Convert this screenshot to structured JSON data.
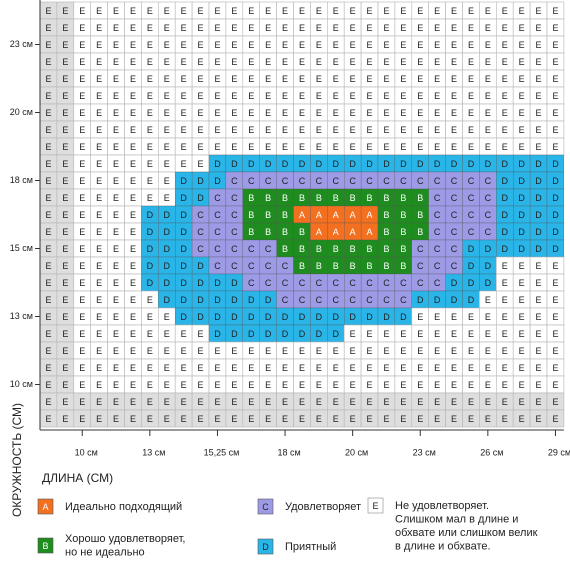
{
  "grid": {
    "rows": [
      [
        "E",
        "E",
        "E",
        "E",
        "E",
        "E",
        "E",
        "E",
        "E",
        "E",
        "E",
        "E",
        "E",
        "E",
        "E",
        "E",
        "E",
        "E",
        "E",
        "E",
        "E",
        "E",
        "E",
        "E",
        "E",
        "E",
        "E",
        "E",
        "E",
        "E",
        "E"
      ],
      [
        "E",
        "E",
        "E",
        "E",
        "E",
        "E",
        "E",
        "E",
        "E",
        "E",
        "E",
        "E",
        "E",
        "E",
        "E",
        "E",
        "E",
        "E",
        "E",
        "E",
        "E",
        "E",
        "E",
        "E",
        "E",
        "E",
        "E",
        "E",
        "E",
        "E",
        "E"
      ],
      [
        "E",
        "E",
        "E",
        "E",
        "E",
        "E",
        "E",
        "E",
        "E",
        "E",
        "E",
        "E",
        "E",
        "E",
        "E",
        "E",
        "E",
        "E",
        "E",
        "E",
        "E",
        "E",
        "E",
        "E",
        "E",
        "E",
        "E",
        "E",
        "E",
        "E",
        "E"
      ],
      [
        "E",
        "E",
        "E",
        "E",
        "E",
        "E",
        "E",
        "E",
        "E",
        "E",
        "E",
        "E",
        "E",
        "E",
        "E",
        "E",
        "E",
        "E",
        "E",
        "E",
        "E",
        "E",
        "E",
        "E",
        "E",
        "E",
        "E",
        "E",
        "E",
        "E",
        "E"
      ],
      [
        "E",
        "E",
        "E",
        "E",
        "E",
        "E",
        "E",
        "E",
        "E",
        "E",
        "E",
        "E",
        "E",
        "E",
        "E",
        "E",
        "E",
        "E",
        "E",
        "E",
        "E",
        "E",
        "E",
        "E",
        "E",
        "E",
        "E",
        "E",
        "E",
        "E",
        "E"
      ],
      [
        "E",
        "E",
        "E",
        "E",
        "E",
        "E",
        "E",
        "E",
        "E",
        "E",
        "E",
        "E",
        "E",
        "E",
        "E",
        "E",
        "E",
        "E",
        "E",
        "E",
        "E",
        "E",
        "E",
        "E",
        "E",
        "E",
        "E",
        "E",
        "E",
        "E",
        "E"
      ],
      [
        "E",
        "E",
        "E",
        "E",
        "E",
        "E",
        "E",
        "E",
        "E",
        "E",
        "E",
        "E",
        "E",
        "E",
        "E",
        "E",
        "E",
        "E",
        "E",
        "E",
        "E",
        "E",
        "E",
        "E",
        "E",
        "E",
        "E",
        "E",
        "E",
        "E",
        "E"
      ],
      [
        "E",
        "E",
        "E",
        "E",
        "E",
        "E",
        "E",
        "E",
        "E",
        "E",
        "E",
        "E",
        "E",
        "E",
        "E",
        "E",
        "E",
        "E",
        "E",
        "E",
        "E",
        "E",
        "E",
        "E",
        "E",
        "E",
        "E",
        "E",
        "E",
        "E",
        "E"
      ],
      [
        "E",
        "E",
        "E",
        "E",
        "E",
        "E",
        "E",
        "E",
        "E",
        "E",
        "E",
        "E",
        "E",
        "E",
        "E",
        "E",
        "E",
        "E",
        "E",
        "E",
        "E",
        "E",
        "E",
        "E",
        "E",
        "E",
        "E",
        "E",
        "E",
        "E",
        "E"
      ],
      [
        "E",
        "E",
        "E",
        "E",
        "E",
        "E",
        "E",
        "E",
        "E",
        "E",
        "D",
        "D",
        "D",
        "D",
        "D",
        "D",
        "D",
        "D",
        "D",
        "D",
        "D",
        "D",
        "D",
        "D",
        "D",
        "D",
        "D",
        "D",
        "D",
        "D",
        "D"
      ],
      [
        "E",
        "E",
        "E",
        "E",
        "E",
        "E",
        "E",
        "E",
        "D",
        "D",
        "D",
        "C",
        "C",
        "C",
        "C",
        "C",
        "C",
        "C",
        "C",
        "C",
        "C",
        "C",
        "C",
        "C",
        "C",
        "C",
        "C",
        "D",
        "D",
        "D",
        "D"
      ],
      [
        "E",
        "E",
        "E",
        "E",
        "E",
        "E",
        "E",
        "E",
        "D",
        "D",
        "C",
        "C",
        "B",
        "B",
        "B",
        "B",
        "B",
        "B",
        "B",
        "B",
        "B",
        "B",
        "B",
        "C",
        "C",
        "C",
        "C",
        "D",
        "D",
        "D",
        "D"
      ],
      [
        "E",
        "E",
        "E",
        "E",
        "E",
        "E",
        "D",
        "D",
        "D",
        "C",
        "C",
        "C",
        "B",
        "B",
        "B",
        "A",
        "A",
        "A",
        "A",
        "A",
        "B",
        "B",
        "B",
        "C",
        "C",
        "C",
        "C",
        "D",
        "D",
        "D",
        "D"
      ],
      [
        "E",
        "E",
        "E",
        "E",
        "E",
        "E",
        "D",
        "D",
        "D",
        "C",
        "C",
        "C",
        "B",
        "B",
        "B",
        "B",
        "A",
        "A",
        "A",
        "A",
        "B",
        "B",
        "B",
        "C",
        "C",
        "C",
        "C",
        "D",
        "D",
        "D",
        "D"
      ],
      [
        "E",
        "E",
        "E",
        "E",
        "E",
        "E",
        "D",
        "D",
        "D",
        "C",
        "C",
        "C",
        "C",
        "C",
        "B",
        "B",
        "B",
        "B",
        "B",
        "B",
        "B",
        "B",
        "C",
        "C",
        "C",
        "D",
        "D",
        "D",
        "D",
        "D",
        "D"
      ],
      [
        "E",
        "E",
        "E",
        "E",
        "E",
        "E",
        "D",
        "D",
        "D",
        "D",
        "C",
        "C",
        "C",
        "C",
        "C",
        "B",
        "B",
        "B",
        "B",
        "B",
        "B",
        "B",
        "C",
        "C",
        "C",
        "D",
        "D",
        "E",
        "E",
        "E",
        "E"
      ],
      [
        "E",
        "E",
        "E",
        "E",
        "E",
        "E",
        "D",
        "D",
        "D",
        "D",
        "D",
        "D",
        "C",
        "C",
        "C",
        "C",
        "C",
        "C",
        "C",
        "C",
        "C",
        "C",
        "C",
        "C",
        "D",
        "D",
        "D",
        "E",
        "E",
        "E",
        "E"
      ],
      [
        "E",
        "E",
        "E",
        "E",
        "E",
        "E",
        "E",
        "D",
        "D",
        "D",
        "D",
        "D",
        "D",
        "D",
        "C",
        "C",
        "C",
        "C",
        "C",
        "C",
        "C",
        "C",
        "D",
        "D",
        "D",
        "D",
        "E",
        "E",
        "E",
        "E",
        "E"
      ],
      [
        "E",
        "E",
        "E",
        "E",
        "E",
        "E",
        "E",
        "E",
        "D",
        "D",
        "D",
        "D",
        "D",
        "D",
        "D",
        "D",
        "D",
        "D",
        "D",
        "D",
        "D",
        "D",
        "E",
        "E",
        "E",
        "E",
        "E",
        "E",
        "E",
        "E",
        "E"
      ],
      [
        "E",
        "E",
        "E",
        "E",
        "E",
        "E",
        "E",
        "E",
        "E",
        "E",
        "D",
        "D",
        "D",
        "D",
        "D",
        "D",
        "D",
        "D",
        "E",
        "E",
        "E",
        "E",
        "E",
        "E",
        "E",
        "E",
        "E",
        "E",
        "E",
        "E",
        "E"
      ],
      [
        "E",
        "E",
        "E",
        "E",
        "E",
        "E",
        "E",
        "E",
        "E",
        "E",
        "E",
        "E",
        "E",
        "E",
        "E",
        "E",
        "E",
        "E",
        "E",
        "E",
        "E",
        "E",
        "E",
        "E",
        "E",
        "E",
        "E",
        "E",
        "E",
        "E",
        "E"
      ],
      [
        "E",
        "E",
        "E",
        "E",
        "E",
        "E",
        "E",
        "E",
        "E",
        "E",
        "E",
        "E",
        "E",
        "E",
        "E",
        "E",
        "E",
        "E",
        "E",
        "E",
        "E",
        "E",
        "E",
        "E",
        "E",
        "E",
        "E",
        "E",
        "E",
        "E",
        "E"
      ],
      [
        "E",
        "E",
        "E",
        "E",
        "E",
        "E",
        "E",
        "E",
        "E",
        "E",
        "E",
        "E",
        "E",
        "E",
        "E",
        "E",
        "E",
        "E",
        "E",
        "E",
        "E",
        "E",
        "E",
        "E",
        "E",
        "E",
        "E",
        "E",
        "E",
        "E",
        "E"
      ],
      [
        "E",
        "E",
        "E",
        "E",
        "E",
        "E",
        "E",
        "E",
        "E",
        "E",
        "E",
        "E",
        "E",
        "E",
        "E",
        "E",
        "E",
        "E",
        "E",
        "E",
        "E",
        "E",
        "E",
        "E",
        "E",
        "E",
        "E",
        "E",
        "E",
        "E",
        "E"
      ],
      [
        "E",
        "E",
        "E",
        "E",
        "E",
        "E",
        "E",
        "E",
        "E",
        "E",
        "E",
        "E",
        "E",
        "E",
        "E",
        "E",
        "E",
        "E",
        "E",
        "E",
        "E",
        "E",
        "E",
        "E",
        "E",
        "E",
        "E",
        "E",
        "E",
        "E",
        "E"
      ]
    ]
  },
  "y_labels": [
    null,
    null,
    "23 см",
    null,
    null,
    null,
    "20 см",
    null,
    null,
    null,
    "18 см",
    null,
    null,
    null,
    "15 см",
    null,
    null,
    null,
    "13 см",
    null,
    null,
    null,
    "10 см",
    null,
    null
  ],
  "x_labels": [
    null,
    null,
    "10 см",
    null,
    null,
    null,
    "13 см",
    null,
    null,
    null,
    "15,25 см",
    null,
    null,
    null,
    "18 см",
    null,
    null,
    null,
    "20 см",
    null,
    null,
    null,
    "23 см",
    null,
    null,
    null,
    "26 см",
    null,
    null,
    null,
    "29 см"
  ],
  "y_title": "ОКРУЖНОСТЬ (СМ)",
  "x_title": "ДЛИНА (СМ)",
  "colors": {
    "A": "#f37021",
    "B": "#1e8c1e",
    "C": "#9d9be6",
    "D": "#29b5e8",
    "E": "#ffffff"
  },
  "legend": [
    {
      "key": "A",
      "text": [
        "Идеально подходящий"
      ]
    },
    {
      "key": "B",
      "text": [
        "Хорошо удовлетворяет,",
        "но не идеально"
      ]
    },
    {
      "key": "C",
      "text": [
        "Удовлетворяет"
      ]
    },
    {
      "key": "D",
      "text": [
        "Приятный"
      ]
    },
    {
      "key": "E",
      "text": [
        "Не удовлетворяет.",
        "Слишком мал в длине и",
        "обхвате или слишком велик",
        "в длине и обхвате."
      ]
    }
  ]
}
